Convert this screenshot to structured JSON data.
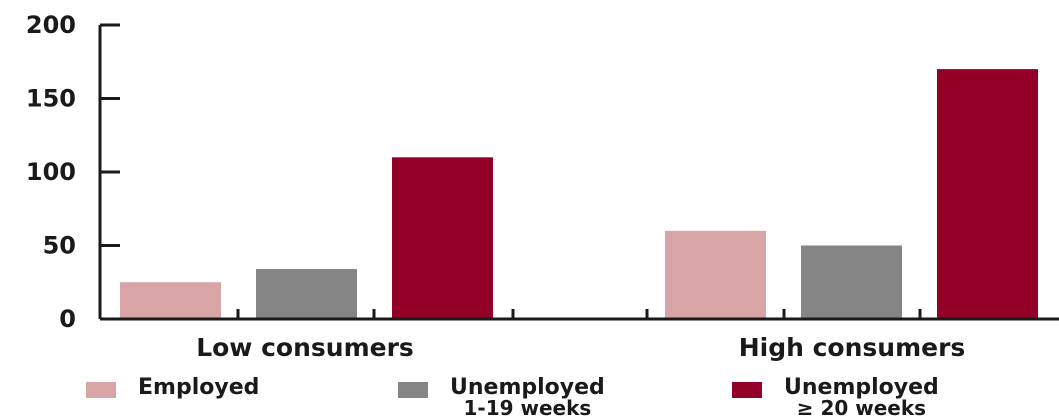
{
  "chart_data": {
    "type": "bar",
    "title": "",
    "xlabel": "",
    "ylabel": "",
    "categories": [
      "Low consumers",
      "High consumers"
    ],
    "series": [
      {
        "name": "Employed",
        "values": [
          25,
          60
        ],
        "color": "#d8a4a6"
      },
      {
        "name": "Unemployed 1-19 weeks",
        "values": [
          34,
          50
        ],
        "color": "#858585"
      },
      {
        "name": "Unemployed ≥ 20 weeks",
        "values": [
          110,
          170
        ],
        "color": "#930027"
      }
    ],
    "ylim": [
      0,
      200
    ],
    "yticks": [
      0,
      50,
      100,
      150,
      200
    ],
    "grid": false,
    "legend_position": "bottom"
  },
  "legend": [
    {
      "line1": "Employed",
      "line2": ""
    },
    {
      "line1": "Unemployed",
      "line2": "1-19 weeks"
    },
    {
      "line1": "Unemployed",
      "line2": "≥ 20 weeks"
    }
  ]
}
